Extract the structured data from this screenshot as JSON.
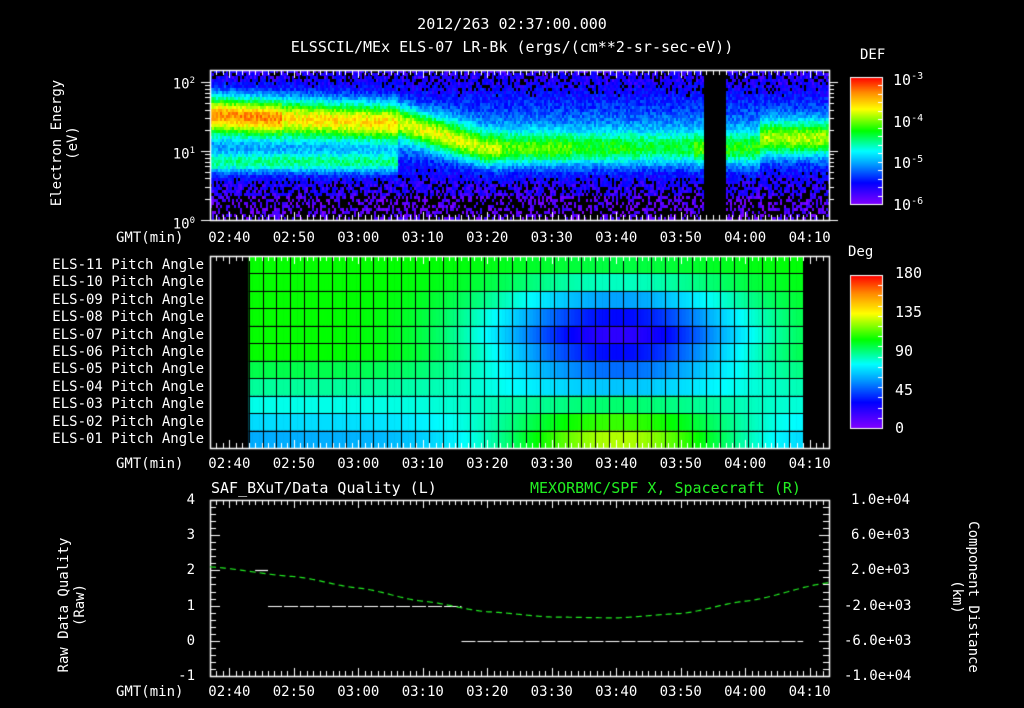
{
  "header": {
    "timestamp": "2012/263 02:37:00.000",
    "subtitle": "ELSSCIL/MEx ELS-07 LR-Bk  (ergs/(cm**2-sr-sec-eV))"
  },
  "time_axis": {
    "label": "GMT(min)",
    "ticks": [
      "02:40",
      "02:50",
      "03:00",
      "03:10",
      "03:20",
      "03:30",
      "03:40",
      "03:50",
      "04:00",
      "04:10"
    ]
  },
  "panel1": {
    "ylabel_line1": "Electron Energy",
    "ylabel_line2": "(eV)",
    "yticks": [
      {
        "base": "10",
        "exp": "2"
      },
      {
        "base": "10",
        "exp": "1"
      },
      {
        "base": "10",
        "exp": "0"
      }
    ],
    "colorbar": {
      "title": "DEF",
      "ticks": [
        {
          "base": "10",
          "exp": "-3"
        },
        {
          "base": "10",
          "exp": "-4"
        },
        {
          "base": "10",
          "exp": "-5"
        },
        {
          "base": "10",
          "exp": "-6"
        }
      ]
    }
  },
  "panel2": {
    "rows": [
      "ELS-11 Pitch Angle",
      "ELS-10 Pitch Angle",
      "ELS-09 Pitch Angle",
      "ELS-08 Pitch Angle",
      "ELS-07 Pitch Angle",
      "ELS-06 Pitch Angle",
      "ELS-05 Pitch Angle",
      "ELS-04 Pitch Angle",
      "ELS-03 Pitch Angle",
      "ELS-02 Pitch Angle",
      "ELS-01 Pitch Angle"
    ],
    "colorbar": {
      "title": "Deg",
      "ticks": [
        "180",
        "135",
        "90",
        "45",
        "0"
      ]
    }
  },
  "panel3": {
    "left_title": "SAF_BXuT/Data Quality (L)",
    "right_title": "MEXORBMC/SPF X, Spacecraft (R)",
    "ylabel_left_line1": "Raw Data Quality",
    "ylabel_left_line2": "(Raw)",
    "yticks_left": [
      "4",
      "3",
      "2",
      "1",
      "0",
      "-1"
    ],
    "ylabel_right_line1": "Component Distance",
    "ylabel_right_line2": "(km)",
    "yticks_right": [
      "1.0e+04",
      "6.0e+03",
      "2.0e+03",
      "-2.0e+03",
      "-6.0e+03",
      "-1.0e+04"
    ]
  },
  "chart_data": [
    {
      "type": "heatmap",
      "title": "ELSSCIL/MEx ELS-07 LR-Bk (ergs/(cm**2-sr-sec-eV))",
      "xlabel": "GMT(min)",
      "ylabel": "Electron Energy (eV)",
      "yscale": "log",
      "ylim": [
        1,
        150
      ],
      "xlim": [
        "02:37",
        "04:13"
      ],
      "colorbar": {
        "label": "DEF",
        "scale": "log",
        "range": [
          1e-06,
          0.001
        ]
      },
      "features": [
        {
          "x_range": [
            "02:38",
            "03:08"
          ],
          "energy_eV": [
            20,
            60
          ],
          "level": 0.0001,
          "note": "main green band, peak ~02:40-02:45 near 40 eV"
        },
        {
          "x_range": [
            "03:05",
            "03:40"
          ],
          "energy_eV": [
            6,
            20
          ],
          "level": 6e-05,
          "note": "band descends to ~10 eV"
        },
        {
          "x_range": [
            "03:51",
            "03:54"
          ],
          "note": "data gap (black)"
        },
        {
          "x_range": [
            "04:03",
            "04:13"
          ],
          "energy_eV": [
            10,
            25
          ],
          "level": 5e-05
        }
      ]
    },
    {
      "type": "heatmap",
      "title": "ELS Pitch Angle",
      "xlabel": "GMT(min)",
      "rows": [
        "ELS-11",
        "ELS-10",
        "ELS-09",
        "ELS-08",
        "ELS-07",
        "ELS-06",
        "ELS-05",
        "ELS-04",
        "ELS-03",
        "ELS-02",
        "ELS-01"
      ],
      "xlim": [
        "02:37",
        "04:13"
      ],
      "data_x_range": [
        "02:43",
        "04:09"
      ],
      "colorbar": {
        "label": "Deg",
        "range": [
          0,
          180
        ]
      },
      "pattern": "~100-110 deg (green) before 03:15 in upper anodes; minimum ~20-30 deg (blue) near 03:40 in ELS-06..ELS-08; ELS-01 ~60 deg early rising to ~120 deg near 03:40"
    },
    {
      "type": "line",
      "title": "SAF_BXuT/Data Quality (L) ; MEXORBMC/SPF X, Spacecraft (R)",
      "xlabel": "GMT(min)",
      "ylabel": "Raw Data Quality (Raw)",
      "ylim": [
        -1,
        4
      ],
      "y2label": "Component Distance (km)",
      "y2lim": [
        -10000,
        10000
      ],
      "series": [
        {
          "name": "Data Quality",
          "axis": "left",
          "color": "#ffffff",
          "points": [
            [
              "02:44",
              2
            ],
            [
              "02:46",
              2
            ],
            [
              "02:46",
              1
            ],
            [
              "03:16",
              1
            ],
            [
              "03:16",
              0
            ],
            [
              "04:09",
              0
            ]
          ]
        },
        {
          "name": "SPF X Spacecraft",
          "axis": "right",
          "color": "#22ee22",
          "style": "dashed",
          "points": [
            [
              "02:37",
              2400
            ],
            [
              "02:50",
              1300
            ],
            [
              "03:00",
              0
            ],
            [
              "03:10",
              -1500
            ],
            [
              "03:20",
              -2700
            ],
            [
              "03:30",
              -3300
            ],
            [
              "03:40",
              -3400
            ],
            [
              "03:50",
              -2900
            ],
            [
              "04:00",
              -1500
            ],
            [
              "04:13",
              600
            ]
          ]
        }
      ]
    }
  ]
}
